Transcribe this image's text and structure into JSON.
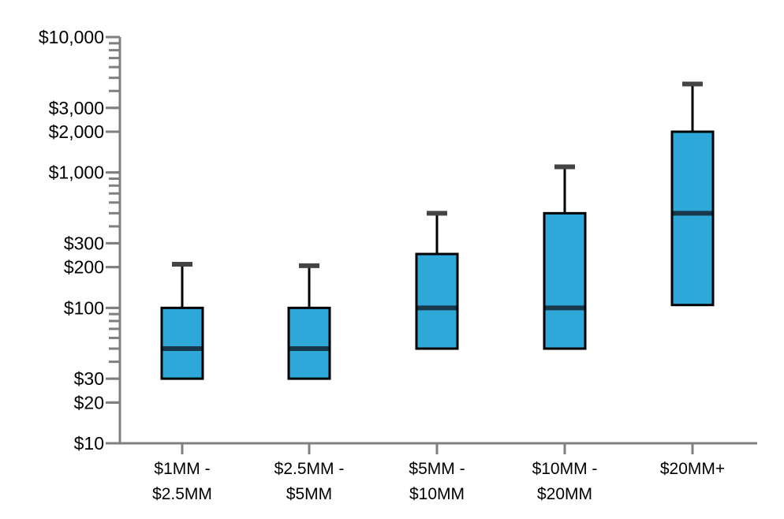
{
  "chart_data": {
    "type": "box",
    "y_scale": "log",
    "ylim": [
      10,
      10000
    ],
    "y_ticks": [
      {
        "value": 10,
        "label": "$10"
      },
      {
        "value": 20,
        "label": "$20"
      },
      {
        "value": 30,
        "label": "$30"
      },
      {
        "value": 100,
        "label": "$100"
      },
      {
        "value": 200,
        "label": "$200"
      },
      {
        "value": 300,
        "label": "$300"
      },
      {
        "value": 1000,
        "label": "$1,000"
      },
      {
        "value": 2000,
        "label": "$2,000"
      },
      {
        "value": 3000,
        "label": "$3,000"
      },
      {
        "value": 10000,
        "label": "$10,000"
      }
    ],
    "categories": [
      {
        "line1": "$1MM -",
        "line2": "$2.5MM"
      },
      {
        "line1": "$2.5MM -",
        "line2": "$5MM"
      },
      {
        "line1": "$5MM -",
        "line2": "$10MM"
      },
      {
        "line1": "$10MM -",
        "line2": "$20MM"
      },
      {
        "line1": "$20MM+",
        "line2": ""
      }
    ],
    "boxes": [
      {
        "whisker_high": 210,
        "q3": 100,
        "median": 50,
        "q1": 30
      },
      {
        "whisker_high": 205,
        "q3": 100,
        "median": 50,
        "q1": 30
      },
      {
        "whisker_high": 500,
        "q3": 250,
        "median": 100,
        "q1": 50
      },
      {
        "whisker_high": 1100,
        "q3": 500,
        "median": 100,
        "q1": 50
      },
      {
        "whisker_high": 4500,
        "q3": 2000,
        "median": 500,
        "q1": 105
      }
    ],
    "colors": {
      "box_fill": "#2ea8d8",
      "box_stroke": "#000000",
      "median": "#17374a",
      "axis": "#7f7f7f",
      "cap": "#444444"
    },
    "grid": false,
    "legend": "none"
  }
}
